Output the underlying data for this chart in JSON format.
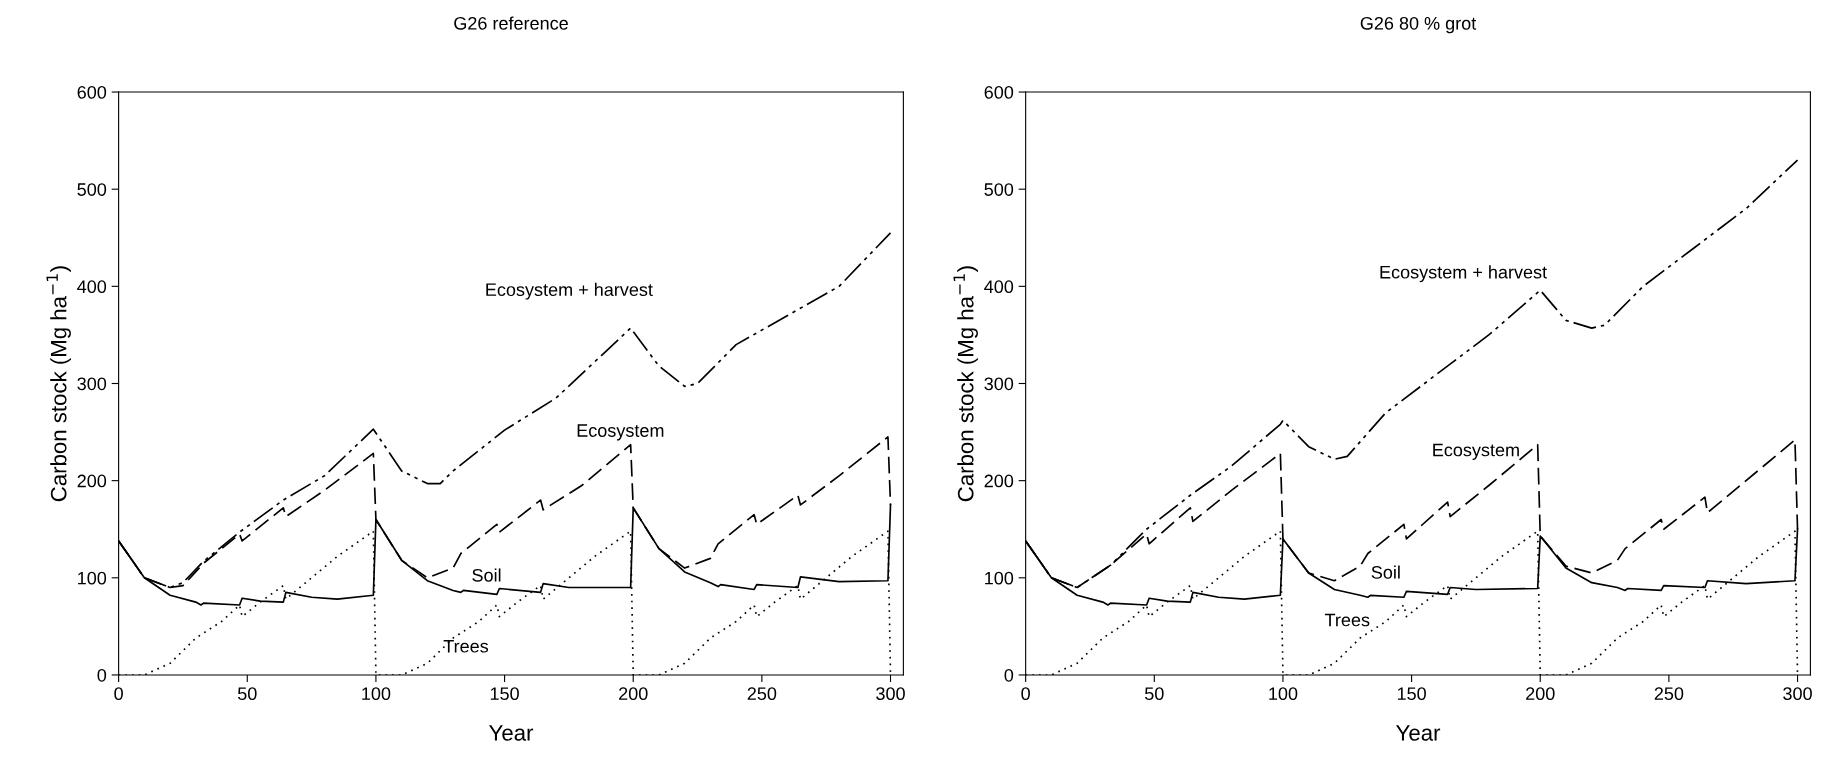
{
  "chart_data": [
    {
      "type": "line",
      "title": "G26 reference",
      "xlabel": "Year",
      "ylabel": "Carbon stock (Mg ha$^{−1}$)",
      "xlim": [
        0,
        305
      ],
      "ylim": [
        0,
        600
      ],
      "xticks": [
        0,
        50,
        100,
        150,
        200,
        250,
        300
      ],
      "yticks": [
        0,
        100,
        200,
        300,
        400,
        500,
        600
      ],
      "grid": false,
      "legend": false,
      "marker": "none",
      "series": [
        {
          "name": "Trees",
          "color": "#000000",
          "line_style": "dotted",
          "x": [
            0,
            10,
            20,
            30,
            40,
            47,
            48,
            55,
            64,
            65,
            75,
            85,
            99,
            100,
            110,
            120,
            130,
            140,
            147,
            148,
            155,
            164,
            165,
            175,
            185,
            199,
            200,
            210,
            220,
            230,
            240,
            247,
            248,
            255,
            264,
            265,
            275,
            285,
            299,
            300
          ],
          "values": [
            0,
            0,
            12,
            38,
            55,
            72,
            60,
            75,
            92,
            78,
            100,
            122,
            148,
            0,
            0,
            12,
            38,
            55,
            72,
            60,
            75,
            92,
            78,
            100,
            122,
            148,
            0,
            0,
            12,
            38,
            55,
            72,
            60,
            75,
            92,
            78,
            100,
            122,
            148,
            0
          ]
        },
        {
          "name": "Soil",
          "color": "#000000",
          "line_style": "solid",
          "x": [
            0,
            10,
            20,
            30,
            32,
            33,
            47,
            48,
            55,
            64,
            65,
            75,
            85,
            99,
            100,
            110,
            120,
            130,
            133,
            134,
            147,
            148,
            164,
            165,
            175,
            199,
            200,
            210,
            220,
            230,
            233,
            234,
            247,
            248,
            264,
            265,
            280,
            299,
            300
          ],
          "values": [
            138,
            100,
            82,
            75,
            72,
            74,
            72,
            79,
            76,
            75,
            85,
            80,
            78,
            82,
            160,
            118,
            97,
            87,
            85,
            87,
            83,
            89,
            85,
            94,
            90,
            90,
            172,
            130,
            106,
            95,
            91,
            93,
            88,
            93,
            90,
            101,
            96,
            97,
            175
          ]
        },
        {
          "name": "Ecosystem",
          "color": "#000000",
          "line_style": "dashed",
          "x": [
            0,
            10,
            20,
            25,
            33,
            47,
            48,
            64,
            65,
            80,
            99,
            100,
            110,
            120,
            130,
            133,
            147,
            148,
            164,
            165,
            180,
            199,
            200,
            210,
            220,
            230,
            233,
            247,
            248,
            264,
            265,
            280,
            299,
            300
          ],
          "values": [
            138,
            100,
            90,
            92,
            115,
            145,
            138,
            172,
            163,
            190,
            228,
            160,
            118,
            100,
            110,
            125,
            155,
            147,
            180,
            170,
            195,
            237,
            172,
            130,
            110,
            120,
            135,
            165,
            155,
            185,
            175,
            205,
            245,
            175
          ]
        },
        {
          "name": "Ecosystem + harvest",
          "color": "#000000",
          "line_style": "dashdot",
          "x": [
            0,
            10,
            20,
            25,
            33,
            47,
            64,
            80,
            99,
            110,
            120,
            125,
            130,
            150,
            170,
            199,
            210,
            220,
            225,
            240,
            260,
            280,
            300
          ],
          "values": [
            138,
            100,
            90,
            95,
            117,
            147,
            180,
            205,
            253,
            210,
            197,
            197,
            210,
            252,
            285,
            357,
            318,
            297,
            300,
            340,
            370,
            400,
            455
          ]
        }
      ]
    },
    {
      "type": "line",
      "title": "G26 80 % grot",
      "xlabel": "Year",
      "ylabel": "Carbon stock (Mg ha$^{−1}$)",
      "xlim": [
        0,
        305
      ],
      "ylim": [
        0,
        600
      ],
      "xticks": [
        0,
        50,
        100,
        150,
        200,
        250,
        300
      ],
      "yticks": [
        0,
        100,
        200,
        300,
        400,
        500,
        600
      ],
      "grid": false,
      "legend": false,
      "marker": "none",
      "series": [
        {
          "name": "Trees",
          "color": "#000000",
          "line_style": "dotted",
          "x": [
            0,
            10,
            20,
            30,
            40,
            47,
            48,
            55,
            64,
            65,
            75,
            85,
            99,
            100,
            110,
            120,
            130,
            140,
            147,
            148,
            155,
            164,
            165,
            175,
            185,
            199,
            200,
            210,
            220,
            230,
            240,
            247,
            248,
            255,
            264,
            265,
            275,
            285,
            299,
            300
          ],
          "values": [
            0,
            0,
            12,
            38,
            55,
            72,
            60,
            75,
            92,
            78,
            100,
            122,
            148,
            0,
            0,
            12,
            38,
            55,
            72,
            60,
            75,
            92,
            78,
            100,
            122,
            148,
            0,
            0,
            12,
            38,
            55,
            72,
            60,
            75,
            92,
            78,
            100,
            122,
            148,
            0
          ]
        },
        {
          "name": "Soil",
          "color": "#000000",
          "line_style": "solid",
          "x": [
            0,
            10,
            20,
            30,
            32,
            33,
            47,
            48,
            55,
            64,
            65,
            75,
            85,
            99,
            100,
            110,
            120,
            130,
            133,
            134,
            147,
            148,
            164,
            165,
            175,
            199,
            200,
            210,
            220,
            230,
            233,
            234,
            247,
            248,
            264,
            265,
            280,
            299,
            300
          ],
          "values": [
            138,
            100,
            82,
            75,
            72,
            74,
            72,
            79,
            76,
            75,
            85,
            80,
            78,
            82,
            140,
            105,
            88,
            82,
            80,
            82,
            80,
            86,
            83,
            90,
            88,
            89,
            143,
            110,
            95,
            90,
            87,
            89,
            87,
            92,
            90,
            97,
            94,
            97,
            150
          ]
        },
        {
          "name": "Ecosystem",
          "color": "#000000",
          "line_style": "dashed",
          "x": [
            0,
            10,
            20,
            33,
            47,
            48,
            64,
            65,
            80,
            99,
            100,
            110,
            120,
            130,
            133,
            147,
            148,
            164,
            165,
            180,
            199,
            200,
            210,
            220,
            230,
            233,
            247,
            248,
            264,
            265,
            280,
            299,
            300
          ],
          "values": [
            138,
            100,
            90,
            113,
            145,
            135,
            172,
            158,
            190,
            228,
            140,
            105,
            97,
            112,
            125,
            155,
            140,
            178,
            163,
            195,
            237,
            143,
            112,
            105,
            118,
            130,
            160,
            150,
            183,
            167,
            200,
            242,
            150
          ]
        },
        {
          "name": "Ecosystem + harvest",
          "color": "#000000",
          "line_style": "dashdot",
          "x": [
            0,
            10,
            20,
            33,
            47,
            64,
            80,
            99,
            100,
            110,
            120,
            125,
            140,
            160,
            180,
            200,
            210,
            220,
            225,
            240,
            260,
            280,
            300
          ],
          "values": [
            138,
            100,
            90,
            113,
            150,
            185,
            215,
            258,
            262,
            235,
            222,
            225,
            270,
            310,
            350,
            396,
            365,
            357,
            360,
            400,
            440,
            480,
            530
          ]
        }
      ]
    }
  ]
}
